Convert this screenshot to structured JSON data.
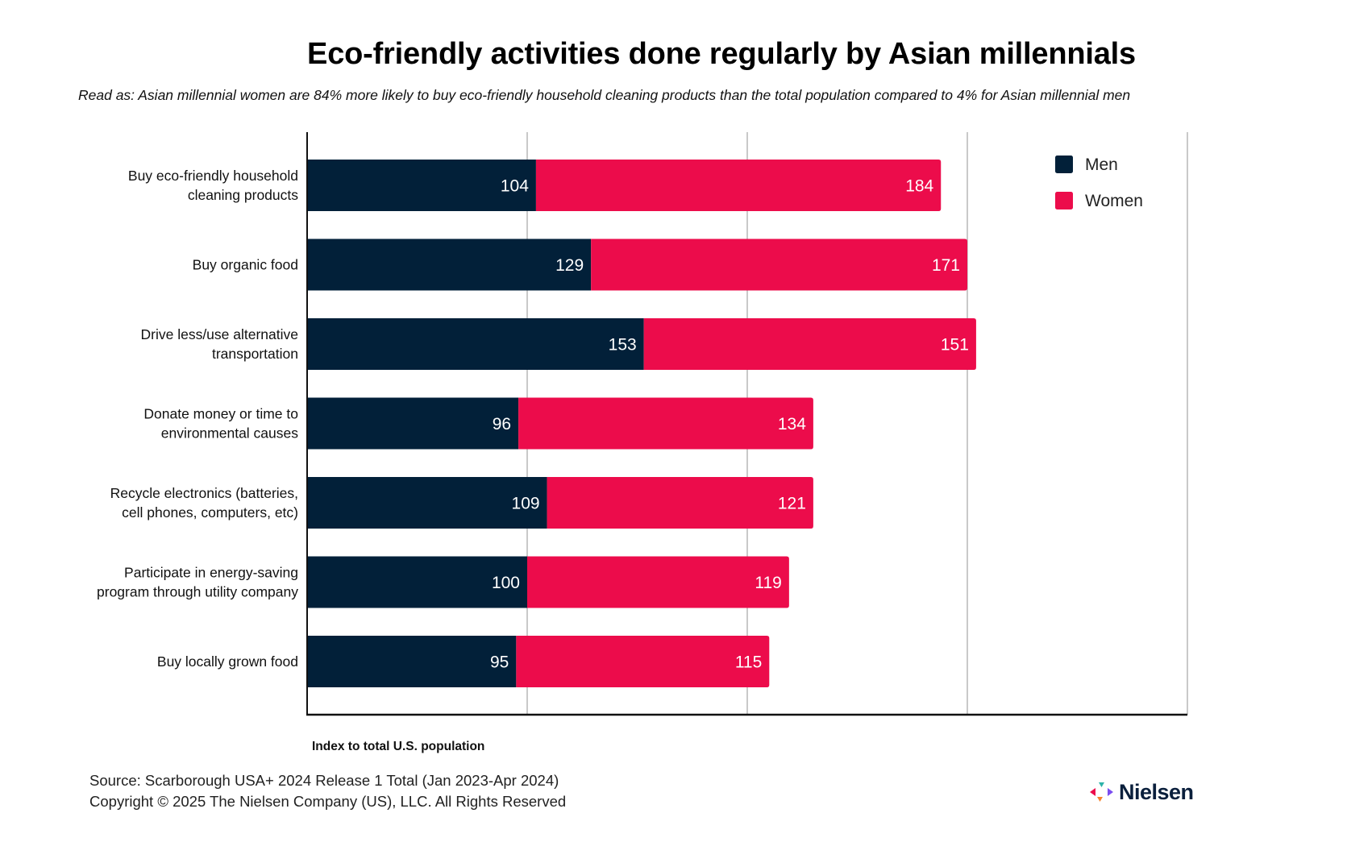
{
  "chart_data": {
    "type": "bar",
    "orientation": "horizontal",
    "stacked": true,
    "title": "Eco-friendly activities done regularly by Asian millennials",
    "subtitle": "Read as: Asian millennial women are 84% more likely to buy eco-friendly household cleaning products than the total population compared to 4% for Asian millennial men",
    "xlabel": "Index to total U.S. population",
    "ylabel": "",
    "xlim": [
      0,
      400
    ],
    "gridlines": [
      100,
      200,
      300,
      400
    ],
    "grid": true,
    "x_tick_labels_shown": false,
    "legend_position": "top-right",
    "categories": [
      [
        "Buy eco-friendly household",
        "cleaning products"
      ],
      [
        "Buy organic food"
      ],
      [
        "Drive less/use alternative",
        "transportation"
      ],
      [
        "Donate money or time to",
        "environmental causes"
      ],
      [
        "Recycle electronics (batteries,",
        "cell phones, computers, etc)"
      ],
      [
        "Participate in energy-saving",
        "program through utility company"
      ],
      [
        "Buy locally grown food"
      ]
    ],
    "series": [
      {
        "name": "Men",
        "color": "#022039",
        "values": [
          104,
          129,
          153,
          96,
          109,
          100,
          95
        ]
      },
      {
        "name": "Women",
        "color": "#EC0C4B",
        "values": [
          184,
          171,
          151,
          134,
          121,
          119,
          115
        ]
      }
    ]
  },
  "footer": {
    "source": "Source: Scarborough USA+ 2024 Release 1 Total (Jan 2023-Apr 2024)",
    "copyright": "Copyright © 2025 The Nielsen Company (US), LLC. All Rights Reserved"
  },
  "logo": {
    "text": "Nielsen",
    "mark_colors": [
      "#EC0C4B",
      "#2DB3A9",
      "#7B4DF0",
      "#F5812A"
    ]
  }
}
